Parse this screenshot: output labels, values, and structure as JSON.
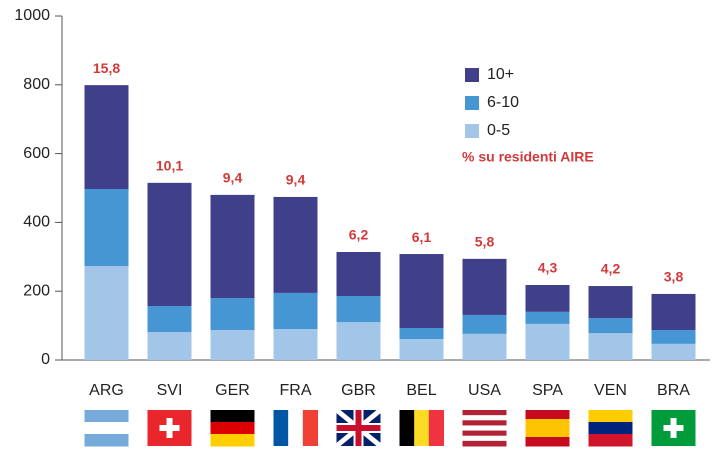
{
  "chart_data": {
    "type": "stacked-bar",
    "categories": [
      "ARG",
      "SVI",
      "GER",
      "FRA",
      "GBR",
      "BEL",
      "USA",
      "SPA",
      "VEN",
      "BRA"
    ],
    "series": [
      {
        "name": "0-5",
        "color": "#a3c6e8",
        "values": [
          273,
          81,
          87,
          90,
          110,
          61,
          76,
          105,
          78,
          47
        ]
      },
      {
        "name": "6-10",
        "color": "#4596d3",
        "values": [
          224,
          76,
          93,
          105,
          76,
          32,
          55,
          35,
          44,
          40
        ]
      },
      {
        "name": "10+",
        "color": "#3f3f8a",
        "values": [
          302,
          358,
          300,
          279,
          128,
          215,
          163,
          78,
          93,
          105
        ]
      }
    ],
    "pct_labels": [
      "15,8",
      "10,1",
      "9,4",
      "9,4",
      "6,2",
      "6,1",
      "5,8",
      "4,3",
      "4,2",
      "3,8"
    ],
    "note": "% su residenti AIRE",
    "ylim": [
      0,
      1000
    ],
    "yticks": [
      0,
      200,
      400,
      600,
      800,
      1000
    ],
    "grid": false
  }
}
